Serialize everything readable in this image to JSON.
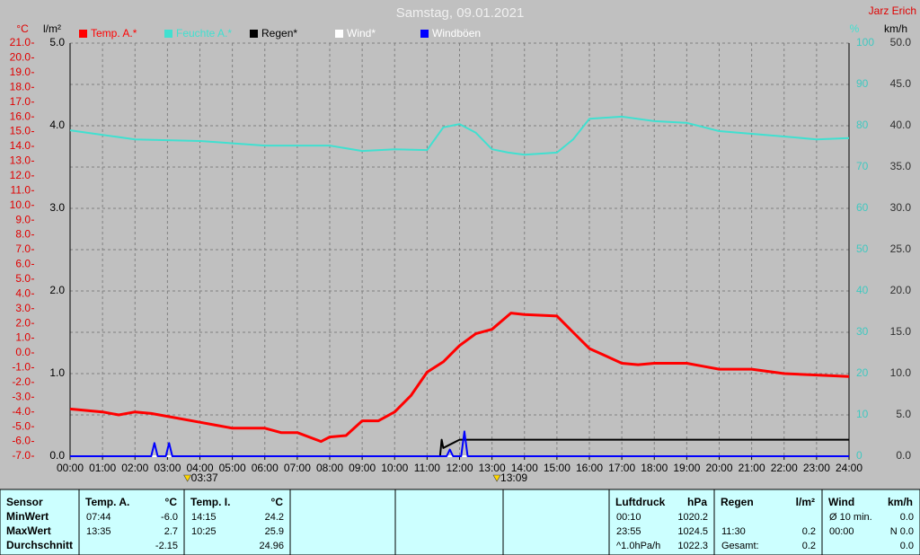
{
  "chart_data": {
    "type": "line",
    "title": "Samstag, 09.01.2021",
    "subtitle": "Jarz Erich",
    "y_unit": "°C",
    "y3_unit": "l/m²",
    "y2_unit": "%",
    "y4_unit": "km/h",
    "xlim": [
      0,
      24
    ],
    "xticks": [
      {
        "value": 0,
        "label": "00:00"
      },
      {
        "value": 1,
        "label": "01:00"
      },
      {
        "value": 2,
        "label": "02:00"
      },
      {
        "value": 3,
        "label": "03:00"
      },
      {
        "value": 4,
        "label": "04:00"
      },
      {
        "value": 5,
        "label": "05:00"
      },
      {
        "value": 6,
        "label": "06:00"
      },
      {
        "value": 7,
        "label": "07:00"
      },
      {
        "value": 8,
        "label": "08:00"
      },
      {
        "value": 9,
        "label": "09:00"
      },
      {
        "value": 10,
        "label": "10:00"
      },
      {
        "value": 11,
        "label": "11:00"
      },
      {
        "value": 12,
        "label": "12:00"
      },
      {
        "value": 13,
        "label": "13:00"
      },
      {
        "value": 14,
        "label": "14:00"
      },
      {
        "value": 15,
        "label": "15:00"
      },
      {
        "value": 16,
        "label": "16:00"
      },
      {
        "value": 17,
        "label": "17:00"
      },
      {
        "value": 18,
        "label": "18:00"
      },
      {
        "value": 19,
        "label": "19:00"
      },
      {
        "value": 20,
        "label": "20:00"
      },
      {
        "value": 21,
        "label": "21:00"
      },
      {
        "value": 22,
        "label": "22:00"
      },
      {
        "value": 23,
        "label": "23:00"
      },
      {
        "value": 24,
        "label": "24:00"
      }
    ],
    "ylim": [
      -7,
      21
    ],
    "yticks": [
      {
        "value": 21,
        "label": "21.0"
      },
      {
        "value": 20,
        "label": "20.0"
      },
      {
        "value": 19,
        "label": "19.0"
      },
      {
        "value": 18,
        "label": "18.0"
      },
      {
        "value": 17,
        "label": "17.0"
      },
      {
        "value": 16,
        "label": "16.0"
      },
      {
        "value": 15,
        "label": "15.0"
      },
      {
        "value": 14,
        "label": "14.0"
      },
      {
        "value": 13,
        "label": "13.0"
      },
      {
        "value": 12,
        "label": "12.0"
      },
      {
        "value": 11,
        "label": "11.0"
      },
      {
        "value": 10,
        "label": "10.0"
      },
      {
        "value": 9,
        "label": "9.0"
      },
      {
        "value": 8,
        "label": "8.0"
      },
      {
        "value": 7,
        "label": "7.0"
      },
      {
        "value": 6,
        "label": "6.0"
      },
      {
        "value": 5,
        "label": "5.0"
      },
      {
        "value": 4,
        "label": "4.0"
      },
      {
        "value": 3,
        "label": "3.0"
      },
      {
        "value": 2,
        "label": "2.0"
      },
      {
        "value": 1,
        "label": "1.0"
      },
      {
        "value": 0,
        "label": "0.0"
      },
      {
        "value": -1,
        "label": "-1.0"
      },
      {
        "value": -2,
        "label": "-2.0"
      },
      {
        "value": -3,
        "label": "-3.0"
      },
      {
        "value": -4,
        "label": "-4.0"
      },
      {
        "value": -5,
        "label": "-5.0"
      },
      {
        "value": -6,
        "label": "-6.0"
      },
      {
        "value": -7,
        "label": "-7.0"
      }
    ],
    "y3lim": [
      0,
      5
    ],
    "y3ticks": [
      {
        "value": 5,
        "label": "5.0"
      },
      {
        "value": 4,
        "label": "4.0"
      },
      {
        "value": 3,
        "label": "3.0"
      },
      {
        "value": 2,
        "label": "2.0"
      },
      {
        "value": 1,
        "label": "1.0"
      },
      {
        "value": 0,
        "label": "0.0"
      }
    ],
    "y2lim": [
      0,
      100
    ],
    "y2ticks": [
      100,
      90,
      80,
      70,
      60,
      50,
      40,
      30,
      20,
      10,
      0
    ],
    "y4lim": [
      0,
      50
    ],
    "y4ticks": [
      {
        "value": 50,
        "label": "50.0"
      },
      {
        "value": 45,
        "label": "45.0"
      },
      {
        "value": 40,
        "label": "40.0"
      },
      {
        "value": 35,
        "label": "35.0"
      },
      {
        "value": 30,
        "label": "30.0"
      },
      {
        "value": 25,
        "label": "25.0"
      },
      {
        "value": 20,
        "label": "20.0"
      },
      {
        "value": 15,
        "label": "15.0"
      },
      {
        "value": 10,
        "label": "10.0"
      },
      {
        "value": 5,
        "label": "5.0"
      },
      {
        "value": 0,
        "label": "0.0"
      }
    ],
    "grid": true,
    "series": [
      {
        "name": "Temp. A.*",
        "color": "#ff0000",
        "axis": "y",
        "x": [
          0,
          1,
          1.5,
          2,
          2.5,
          3,
          4,
          4.5,
          5,
          6,
          6.5,
          7,
          7.733,
          8,
          8.5,
          9,
          9.5,
          10,
          10.5,
          11,
          11.5,
          12,
          12.5,
          13,
          13.583,
          14,
          15,
          15.5,
          16,
          16.5,
          17,
          17.5,
          18,
          19,
          19.5,
          20,
          21,
          22,
          23,
          24
        ],
        "values": [
          -3.8,
          -4.0,
          -4.2,
          -4.0,
          -4.1,
          -4.3,
          -4.7,
          -4.9,
          -5.1,
          -5.1,
          -5.4,
          -5.4,
          -6.0,
          -5.7,
          -5.6,
          -4.6,
          -4.6,
          -4.0,
          -2.9,
          -1.3,
          -0.6,
          0.5,
          1.3,
          1.6,
          2.7,
          2.6,
          2.5,
          1.4,
          0.3,
          -0.2,
          -0.7,
          -0.8,
          -0.7,
          -0.7,
          -0.9,
          -1.1,
          -1.1,
          -1.4,
          -1.5,
          -1.6
        ]
      },
      {
        "name": "Feuchte A.*",
        "color": "#40e0d0",
        "axis": "y2",
        "x": [
          0,
          2,
          4,
          6,
          8,
          9,
          10,
          11,
          11.5,
          12,
          12.5,
          13,
          13.5,
          14,
          15,
          15.5,
          16,
          17,
          18,
          19,
          20,
          22,
          23,
          24
        ],
        "values": [
          78.9,
          76.7,
          76.3,
          75.2,
          75.2,
          73.9,
          74.3,
          74.1,
          79.6,
          80.4,
          78.3,
          74.3,
          73.5,
          73.0,
          73.5,
          76.7,
          81.7,
          82.2,
          81.1,
          80.7,
          78.7,
          77.4,
          76.7,
          77.0
        ]
      },
      {
        "name": "Regen*",
        "color": "#000000",
        "axis": "y3",
        "x": [
          0,
          11.4,
          11.45,
          11.5,
          11.75,
          12.0,
          24
        ],
        "values": [
          0,
          0,
          0.2,
          0.1,
          0.15,
          0.2,
          0.2
        ]
      },
      {
        "name": "Wind*",
        "color": "#ffffff",
        "axis": "y4",
        "x": [
          0,
          24
        ],
        "values": [
          0,
          0
        ]
      },
      {
        "name": "Windböen",
        "color": "#0000ff",
        "axis": "y4",
        "x": [
          0,
          2.5,
          2.6,
          2.7,
          2.95,
          3.05,
          3.15,
          11.6,
          11.7,
          11.8,
          12.05,
          12.15,
          12.25,
          24
        ],
        "values": [
          0,
          0,
          1.6,
          0,
          0,
          1.6,
          0,
          0,
          0.8,
          0,
          0,
          3.0,
          0,
          0
        ]
      }
    ],
    "annotations": [
      {
        "x": 3.617,
        "label": "03:37"
      },
      {
        "x": 13.15,
        "label": "13:09"
      }
    ]
  },
  "stats": {
    "row_labels": [
      "Sensor",
      "MinWert",
      "MaxWert",
      "Durchschnitt"
    ],
    "groups": [
      {
        "name": "Temp. A.",
        "unit": "°C",
        "rows": [
          {
            "time": "07:44",
            "value": "-6.0"
          },
          {
            "time": "13:35",
            "value": "2.7"
          },
          {
            "value": "-2.15"
          }
        ]
      },
      {
        "name": "Temp. I.",
        "unit": "°C",
        "rows": [
          {
            "time": "14:15",
            "value": "24.2"
          },
          {
            "time": "10:25",
            "value": "25.9"
          },
          {
            "value": "24.96"
          }
        ]
      },
      {
        "name": "Luftdruck",
        "unit": "hPa",
        "rows": [
          {
            "time": "00:10",
            "value": "1020.2"
          },
          {
            "time": "23:55",
            "value": "1024.5"
          },
          {
            "time": "^1.0hPa/h",
            "value": "1022.3"
          }
        ]
      },
      {
        "name": "Regen",
        "unit": "l/m²",
        "rows": [
          {},
          {
            "time": "11:30",
            "value": "0.2"
          },
          {
            "time": "Gesamt:",
            "value": "0.2"
          }
        ]
      },
      {
        "name": "Wind",
        "unit": "km/h",
        "rows": [
          {
            "time": "Ø 10 min.",
            "value": "0.0"
          },
          {
            "time": "00:00",
            "value": "N 0.0"
          },
          {
            "value": "0.0"
          }
        ]
      }
    ]
  }
}
